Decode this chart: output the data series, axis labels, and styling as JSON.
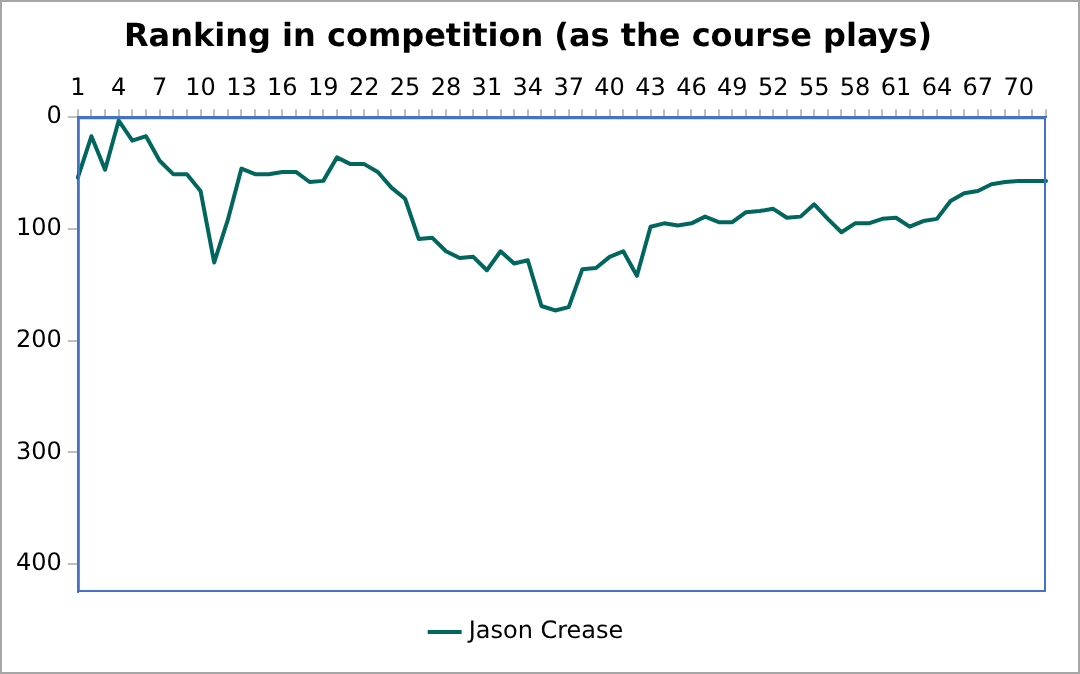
{
  "chart_data": {
    "type": "line",
    "title": "Ranking in competition (as the course plays)",
    "categories": [
      "1",
      null,
      null,
      "4",
      null,
      null,
      "7",
      null,
      null,
      "10",
      null,
      null,
      "13",
      null,
      null,
      "16",
      null,
      null,
      "19",
      null,
      null,
      "22",
      null,
      null,
      "25",
      null,
      null,
      "28",
      null,
      null,
      "31",
      null,
      null,
      "34",
      null,
      null,
      "37",
      null,
      null,
      "40",
      null,
      null,
      "43",
      null,
      null,
      "46",
      null,
      null,
      "49",
      null,
      null,
      "52",
      null,
      null,
      "55",
      null,
      null,
      "58",
      null,
      null,
      "61",
      null,
      null,
      "64",
      null,
      null,
      "67",
      null,
      null,
      "70",
      null,
      null
    ],
    "series": [
      {
        "name": "Jason Crease",
        "color": "#00665e",
        "values": [
          54,
          17,
          47,
          3,
          21,
          17,
          39,
          51,
          51,
          66,
          130,
          92,
          46,
          51,
          51,
          49,
          49,
          58,
          57,
          36,
          42,
          42,
          49,
          63,
          73,
          109,
          108,
          120,
          126,
          125,
          137,
          120,
          131,
          128,
          169,
          173,
          170,
          136,
          135,
          125,
          120,
          142,
          98,
          95,
          97,
          95,
          89,
          94,
          94,
          85,
          84,
          82,
          90,
          89,
          78,
          91,
          103,
          95,
          95,
          91,
          90,
          98,
          93,
          91,
          75,
          68,
          66,
          60,
          58,
          57,
          57,
          57
        ]
      }
    ],
    "ylim": [
      425,
      0
    ],
    "yticks": [
      0,
      100,
      200,
      300,
      400
    ],
    "grid": false,
    "legend": "bottom",
    "marker": "none",
    "line_style": "solid"
  }
}
